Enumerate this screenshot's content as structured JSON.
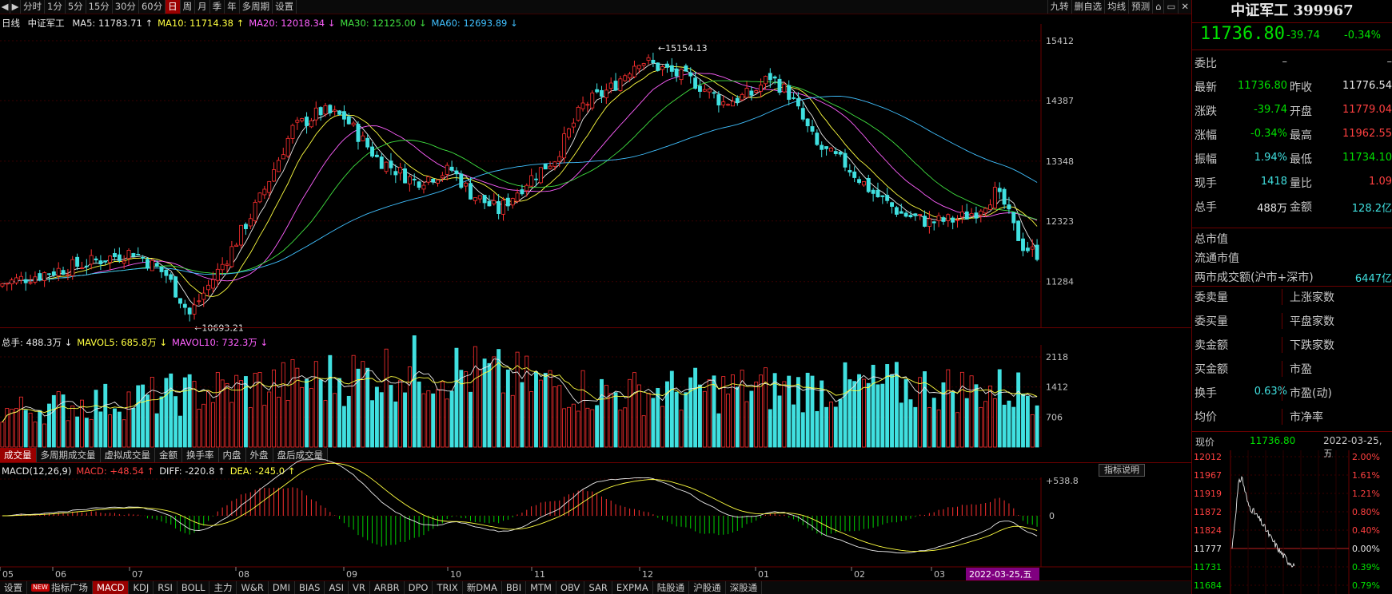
{
  "toolbar": {
    "periods": [
      "分时",
      "1分",
      "5分",
      "15分",
      "30分",
      "60分",
      "日",
      "周",
      "月",
      "季",
      "年",
      "多周期",
      "设置"
    ],
    "active_period": "日",
    "right_tools": [
      "九转",
      "删自选",
      "均线",
      "预测"
    ]
  },
  "ma": {
    "label": "日线",
    "name": "中证军工",
    "items": [
      {
        "text": "MA5: 11783.71",
        "color": "#e8e8e8",
        "arrow": "↑"
      },
      {
        "text": "MA10: 11714.38",
        "color": "#ffff40",
        "arrow": "↑"
      },
      {
        "text": "MA20: 12018.34",
        "color": "#ff60ff",
        "arrow": "↓"
      },
      {
        "text": "MA30: 12125.00",
        "color": "#40e040",
        "arrow": "↓"
      },
      {
        "text": "MA60: 12693.89",
        "color": "#40c0ff",
        "arrow": "↓"
      }
    ]
  },
  "price_axis": [
    "15412",
    "14387",
    "13348",
    "12323",
    "11284"
  ],
  "annotations": {
    "high": "15154.13",
    "low": "10693.21"
  },
  "volume": {
    "items": [
      {
        "text": "总手: 488.3万",
        "color": "#e8e8e8",
        "arrow": "↓"
      },
      {
        "text": "MAVOL5: 685.8万",
        "color": "#ffff40",
        "arrow": "↓"
      },
      {
        "text": "MAVOL10: 732.3万",
        "color": "#ff60ff",
        "arrow": "↓"
      }
    ],
    "axis": [
      "2118",
      "1412",
      "706"
    ]
  },
  "vol_tabs": [
    "成交量",
    "多周期成交量",
    "虚拟成交量",
    "金额",
    "换手率",
    "内盘",
    "外盘",
    "盘后成交量"
  ],
  "macd": {
    "items": [
      {
        "text": "MACD(12,26,9)",
        "color": "#e8e8e8",
        "arrow": ""
      },
      {
        "text": "MACD: +48.54",
        "color": "#ff4040",
        "arrow": "↑"
      },
      {
        "text": "DIFF: -220.8",
        "color": "#e8e8e8",
        "arrow": "↑"
      },
      {
        "text": "DEA: -245.0",
        "color": "#ffff40",
        "arrow": "↑"
      }
    ],
    "axis": [
      "+538.8",
      "0"
    ],
    "button": "指标说明"
  },
  "months": [
    "05",
    "06",
    "07",
    "08",
    "09",
    "10",
    "11",
    "12",
    "01",
    "02",
    "03"
  ],
  "date_cursor": "2022-03-25,五",
  "bottom_tabs": [
    "设置",
    "指标广场",
    "MACD",
    "KDJ",
    "RSI",
    "BOLL",
    "主力",
    "W&R",
    "DMI",
    "BIAS",
    "ASI",
    "VR",
    "ARBR",
    "DPO",
    "TRIX",
    "新DMA",
    "BBI",
    "MTM",
    "OBV",
    "SAR",
    "EXPMA",
    "陆股通",
    "沪股通",
    "深股通"
  ],
  "bottom_new_badge": "NEW",
  "panel": {
    "title": "中证军工 399967",
    "price": "11736.80",
    "change": "-39.74",
    "pct": "-0.34%",
    "rows": [
      {
        "l1": "委比",
        "v1": "–",
        "c1": "#c8c8c8",
        "l2": "",
        "v2": "–",
        "c2": "#c8c8c8"
      },
      {
        "l1": "最新",
        "v1": "11736.80",
        "c1": "#00e000",
        "l2": "昨收",
        "v2": "11776.54",
        "c2": "#e8e8e8"
      },
      {
        "l1": "涨跌",
        "v1": "-39.74",
        "c1": "#00e000",
        "l2": "开盘",
        "v2": "11779.04",
        "c2": "#ff4040"
      },
      {
        "l1": "涨幅",
        "v1": "-0.34%",
        "c1": "#00e000",
        "l2": "最高",
        "v2": "11962.55",
        "c2": "#ff4040"
      },
      {
        "l1": "振幅",
        "v1": "1.94%",
        "c1": "#40e0e0",
        "l2": "最低",
        "v2": "11734.10",
        "c2": "#00e000"
      },
      {
        "l1": "现手",
        "v1": "1418",
        "c1": "#40e0e0",
        "l2": "量比",
        "v2": "1.09",
        "c2": "#ff4040"
      },
      {
        "l1": "总手",
        "v1": "488万",
        "c1": "#e8e8e8",
        "l2": "金额",
        "v2": "128.2亿",
        "c2": "#40e0e0"
      }
    ],
    "market": [
      {
        "l": "总市值",
        "v": ""
      },
      {
        "l": "流通市值",
        "v": ""
      },
      {
        "l": "两市成交额(沪市+深市)",
        "v": "6447亿"
      }
    ],
    "rows2": [
      {
        "l1": "委卖量",
        "v1": "",
        "l2": "上涨家数",
        "v2": ""
      },
      {
        "l1": "委买量",
        "v1": "",
        "l2": "平盘家数",
        "v2": ""
      },
      {
        "l1": "卖金额",
        "v1": "",
        "l2": "下跌家数",
        "v2": ""
      },
      {
        "l1": "买金额",
        "v1": "",
        "l2": "市盈",
        "v2": ""
      },
      {
        "l1": "换手",
        "v1": "0.63%",
        "l2": "市盈(动)",
        "v2": ""
      },
      {
        "l1": "均价",
        "v1": "",
        "l2": "市净率",
        "v2": ""
      }
    ],
    "mini": {
      "label": "现价",
      "price": "11736.80",
      "date": "2022-03-25,五",
      "left_axis": [
        "12012",
        "11967",
        "11919",
        "11872",
        "11824",
        "11777",
        "11731",
        "11684"
      ],
      "right_axis": [
        "2.00%",
        "1.61%",
        "1.21%",
        "0.80%",
        "0.40%",
        "0.00%",
        "0.39%",
        "0.79%"
      ]
    }
  }
}
